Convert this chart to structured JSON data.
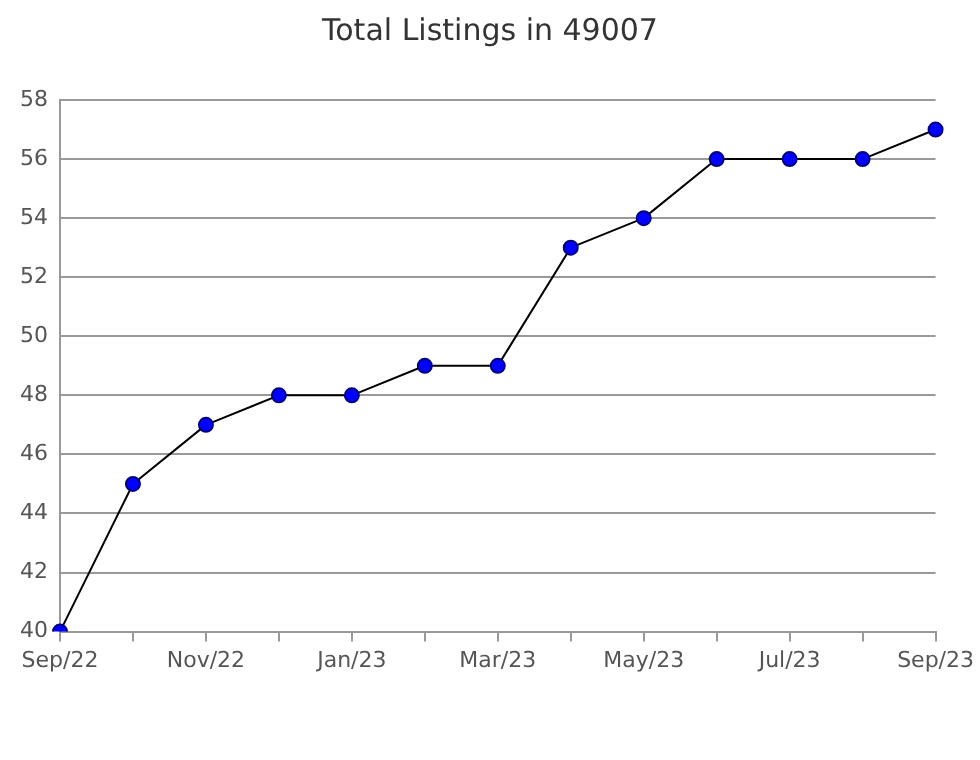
{
  "chart_data": {
    "type": "line",
    "title": "Total Listings in 49007",
    "categories": [
      "Sep/22",
      null,
      "Nov/22",
      null,
      "Jan/23",
      null,
      "Mar/23",
      null,
      "May/23",
      null,
      "Jul/23",
      null,
      "Sep/23"
    ],
    "series": [
      {
        "color": "#0000ff",
        "values": [
          40,
          45,
          47,
          48,
          48,
          49,
          49,
          53,
          54,
          56,
          56,
          56,
          57
        ]
      }
    ],
    "ylim": [
      40,
      58
    ],
    "yticks": [
      40,
      42,
      44,
      46,
      48,
      50,
      52,
      54,
      56,
      58
    ],
    "grid": "y",
    "legend": false,
    "marker": "circle",
    "line_style": "solid"
  }
}
